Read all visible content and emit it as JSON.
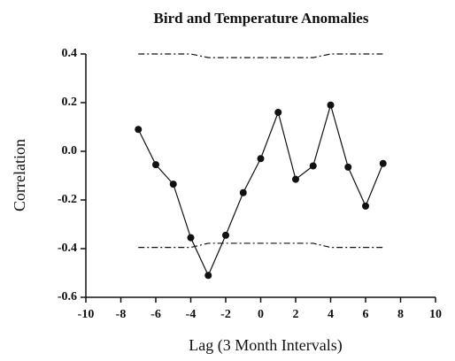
{
  "chart_data": {
    "type": "line",
    "title": "Bird and Temperature Anomalies",
    "xlabel": "Lag (3 Month Intervals)",
    "ylabel": "Correlation",
    "xlim": [
      -10,
      10
    ],
    "xticks": [
      -10,
      -8,
      -6,
      -4,
      -2,
      0,
      2,
      4,
      6,
      8,
      10
    ],
    "ylim": [
      -0.6,
      0.4
    ],
    "yticks": [
      {
        "value": 0.4,
        "label": "0.4"
      },
      {
        "value": 0.2,
        "label": "0.2"
      },
      {
        "value": 0,
        "label": "0.0"
      },
      {
        "value": -0.2,
        "label": "-0.2"
      },
      {
        "value": -0.4,
        "label": "-0.4"
      },
      {
        "value": -0.6,
        "label": "-0.6"
      }
    ],
    "grid": false,
    "series": [
      {
        "color": "#111111",
        "line_style": "solid",
        "markers": true,
        "x": [
          -7,
          -6,
          -5,
          -4,
          -3,
          -2,
          -1,
          0,
          1,
          2,
          3,
          4,
          5,
          6,
          7
        ],
        "values": [
          0.09,
          -0.055,
          -0.135,
          -0.355,
          -0.51,
          -0.345,
          -0.17,
          -0.03,
          0.16,
          -0.115,
          -0.06,
          0.19,
          -0.065,
          -0.225,
          -0.05
        ]
      },
      {
        "color": "#111111",
        "line_style": "dash-dot",
        "markers": false,
        "x": [
          -7,
          -4,
          -3,
          3,
          4,
          7
        ],
        "values": [
          0.4,
          0.4,
          0.385,
          0.385,
          0.4,
          0.4
        ]
      },
      {
        "color": "#111111",
        "line_style": "dash-dot",
        "markers": false,
        "x": [
          -7,
          -4,
          -3,
          3,
          4,
          7
        ],
        "values": [
          -0.395,
          -0.395,
          -0.378,
          -0.378,
          -0.395,
          -0.395
        ]
      }
    ]
  }
}
